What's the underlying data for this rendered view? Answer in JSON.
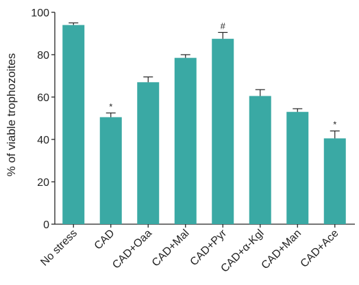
{
  "chart_data": {
    "type": "bar",
    "title": "",
    "xlabel": "",
    "ylabel": "% of viable trophozoites",
    "ylim": [
      0,
      100
    ],
    "yticks": [
      0,
      20,
      40,
      60,
      80,
      100
    ],
    "grid": false,
    "legend": "none",
    "bar_color": "#3aa9a4",
    "categories": [
      "No stress",
      "CAD",
      "CAD+Oaa",
      "CAD+Mal",
      "CAD+Pyr",
      "CAD+α-Kgl",
      "CAD+Man",
      "CAD+Ace"
    ],
    "values": [
      94,
      50.5,
      67,
      78.5,
      87.5,
      60.5,
      53,
      40.5
    ],
    "errors": [
      1,
      2,
      2.5,
      1.5,
      3,
      3,
      1.5,
      3.5
    ],
    "annotations": [
      "",
      "*",
      "",
      "",
      "#",
      "",
      "",
      "*"
    ]
  }
}
